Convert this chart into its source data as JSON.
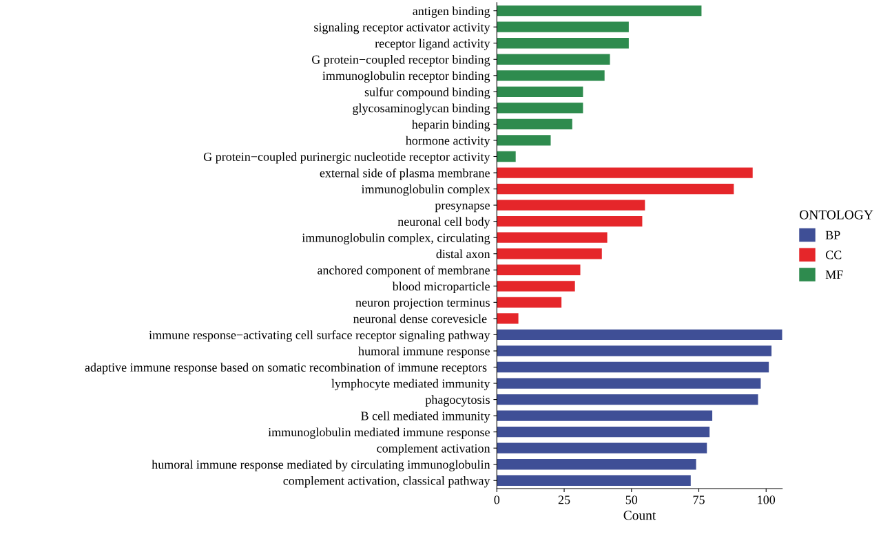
{
  "chart_data": {
    "type": "bar",
    "orientation": "horizontal",
    "xlabel": "Count",
    "legend_title": "ONTOLOGY",
    "legend": "right",
    "grid": false,
    "categories": [
      "antigen binding",
      "signaling receptor activator activity",
      "receptor ligand activity",
      "G protein−coupled receptor binding",
      "immunoglobulin receptor binding",
      "sulfur compound binding",
      "glycosaminoglycan binding",
      "heparin binding",
      "hormone activity",
      "G protein−coupled purinergic nucleotide receptor activity",
      "external side of plasma membrane",
      "immunoglobulin complex",
      "presynapse",
      "neuronal cell body",
      "immunoglobulin complex, circulating",
      "distal axon",
      "anchored component of membrane",
      "blood microparticle",
      "neuron projection terminus",
      "neuronal dense corevesicle ",
      "immune response−activating cell surface receptor signaling pathway",
      "humoral immune response",
      "adaptive immune response based on somatic recombination of immune receptors ",
      "lymphocyte mediated immunity",
      "phagocytosis",
      "B cell mediated immunity",
      "immunoglobulin mediated immune response",
      "complement activation",
      "humoral immune response mediated by circulating immunoglobulin",
      "complement activation, classical pathway"
    ],
    "series": [
      {
        "name": "BP",
        "color": "#3f4f96",
        "values": [
          null,
          null,
          null,
          null,
          null,
          null,
          null,
          null,
          null,
          null,
          null,
          null,
          null,
          null,
          null,
          null,
          null,
          null,
          null,
          null,
          106,
          102,
          101,
          98,
          97,
          80,
          79,
          78,
          74,
          72
        ]
      },
      {
        "name": "CC",
        "color": "#e5262a",
        "values": [
          null,
          null,
          null,
          null,
          null,
          null,
          null,
          null,
          null,
          null,
          95,
          88,
          55,
          54,
          41,
          39,
          31,
          29,
          24,
          8,
          null,
          null,
          null,
          null,
          null,
          null,
          null,
          null,
          null,
          null
        ]
      },
      {
        "name": "MF",
        "color": "#2e8b4e",
        "values": [
          76,
          49,
          49,
          42,
          40,
          32,
          32,
          28,
          20,
          7,
          null,
          null,
          null,
          null,
          null,
          null,
          null,
          null,
          null,
          null,
          null,
          null,
          null,
          null,
          null,
          null,
          null,
          null,
          null,
          null
        ]
      }
    ],
    "xlim": [
      0,
      106
    ],
    "xticks": [
      0,
      25,
      50,
      75,
      100
    ]
  }
}
